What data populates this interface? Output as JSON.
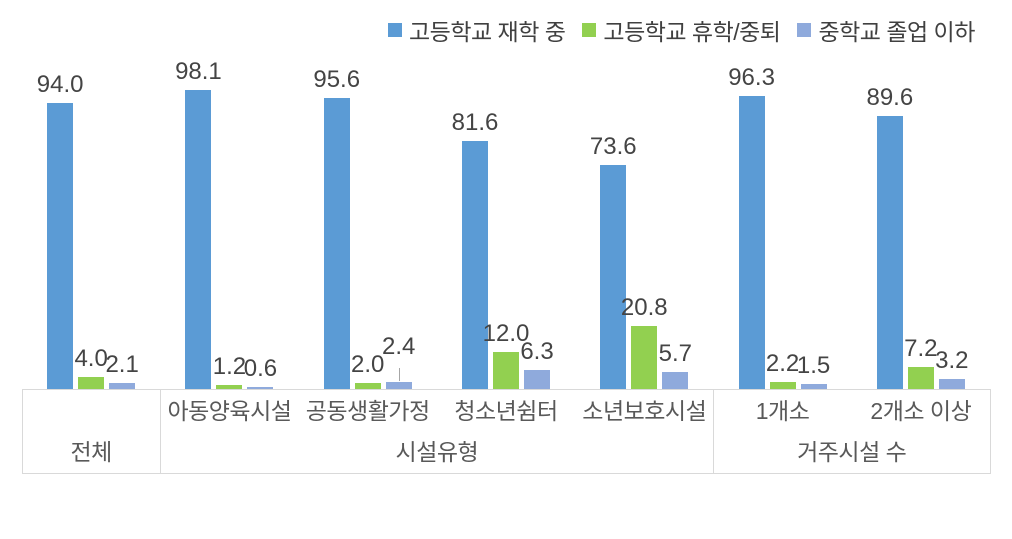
{
  "page": {
    "background": "#ffffff"
  },
  "chart_data": {
    "type": "bar",
    "title": "",
    "categories": [
      "전체",
      "아동양육시설",
      "공동생활가정",
      "청소년쉼터",
      "소년보호시설",
      "1개소",
      "2개소 이상"
    ],
    "series": [
      {
        "name": "고등학교 재학 중",
        "color": "#5B9BD5",
        "values": [
          94.0,
          98.1,
          95.6,
          81.6,
          73.6,
          96.3,
          89.6
        ]
      },
      {
        "name": "고등학교 휴학/중퇴",
        "color": "#92D050",
        "values": [
          4.0,
          1.2,
          2.0,
          12.0,
          20.8,
          2.2,
          7.2
        ]
      },
      {
        "name": "중학교 졸업 이하",
        "color": "#8FAADC",
        "values": [
          2.1,
          0.6,
          2.4,
          6.3,
          5.7,
          1.5,
          3.2
        ]
      }
    ],
    "data_labels": true,
    "label_decimals": 1,
    "ylim": [
      0,
      100
    ],
    "grid": false,
    "legend_position": "top",
    "axis": {
      "top_row": [
        "",
        "아동양육시설",
        "공동생활가정",
        "청소년쉼터",
        "소년보호시설",
        "1개소",
        "2개소 이상"
      ],
      "bottom_row": [
        {
          "label": "전체",
          "span": 1
        },
        {
          "label": "시설유형",
          "span": 4
        },
        {
          "label": "거주시설 수",
          "span": 2
        }
      ]
    },
    "special_labels": [
      {
        "series": 2,
        "category": 2,
        "raised": true,
        "leader_line": true
      }
    ],
    "colors": {
      "data_label_text": "#444444",
      "axis_text": "#595959",
      "legend_text": "#404040",
      "axis_border": "#d9d9d9",
      "leader_line": "#a6a6a6"
    }
  }
}
